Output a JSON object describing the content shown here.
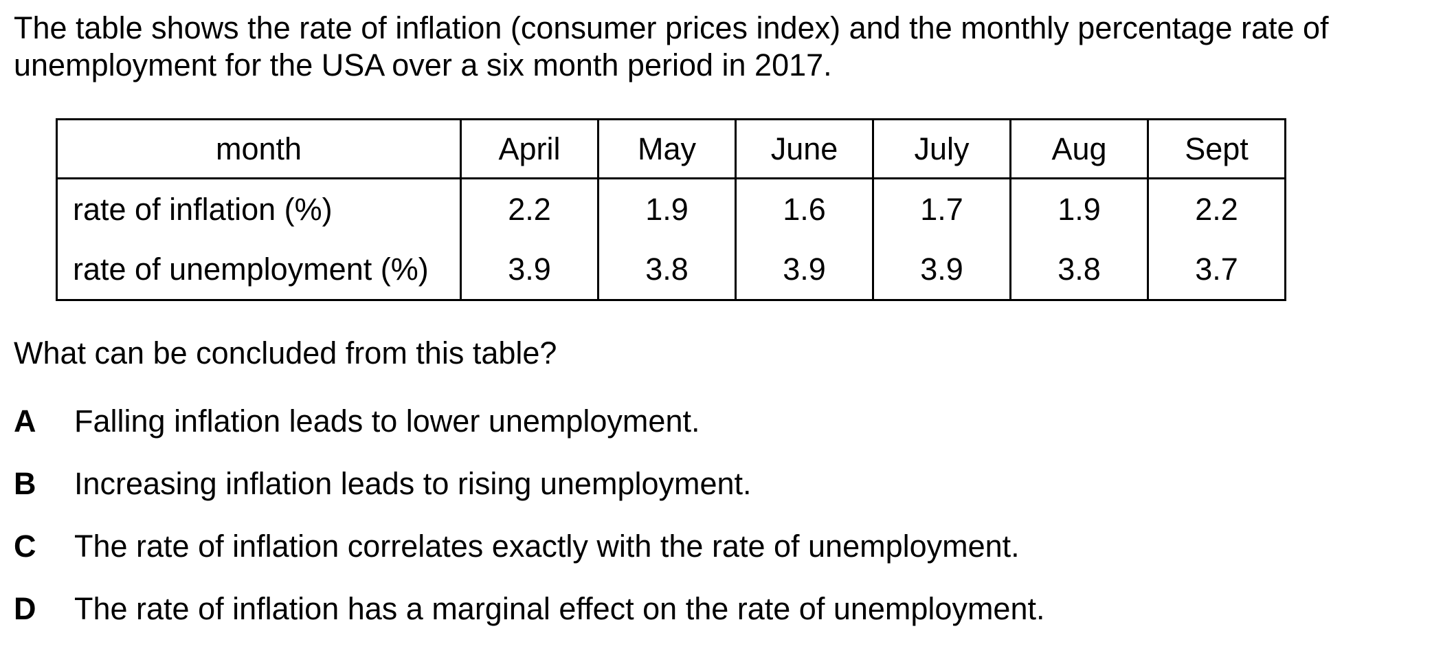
{
  "intro": {
    "line1": "The table shows the rate of inflation (consumer prices index) and the monthly percentage rate of",
    "line2": "unemployment for the USA over a six month period in 2017."
  },
  "table": {
    "header_label": "month",
    "months": [
      "April",
      "May",
      "June",
      "July",
      "Aug",
      "Sept"
    ],
    "rows": [
      {
        "label": "rate of inflation (%)",
        "values": [
          "2.2",
          "1.9",
          "1.6",
          "1.7",
          "1.9",
          "2.2"
        ]
      },
      {
        "label": "rate of unemployment (%)",
        "values": [
          "3.9",
          "3.8",
          "3.9",
          "3.9",
          "3.8",
          "3.7"
        ]
      }
    ]
  },
  "question": "What can be concluded from this table?",
  "options": [
    {
      "letter": "A",
      "text": "Falling inflation leads to lower unemployment."
    },
    {
      "letter": "B",
      "text": "Increasing inflation leads to rising unemployment."
    },
    {
      "letter": "C",
      "text": "The rate of inflation correlates exactly with the rate of unemployment."
    },
    {
      "letter": "D",
      "text": "The rate of inflation has a marginal effect on the rate of unemployment."
    }
  ]
}
